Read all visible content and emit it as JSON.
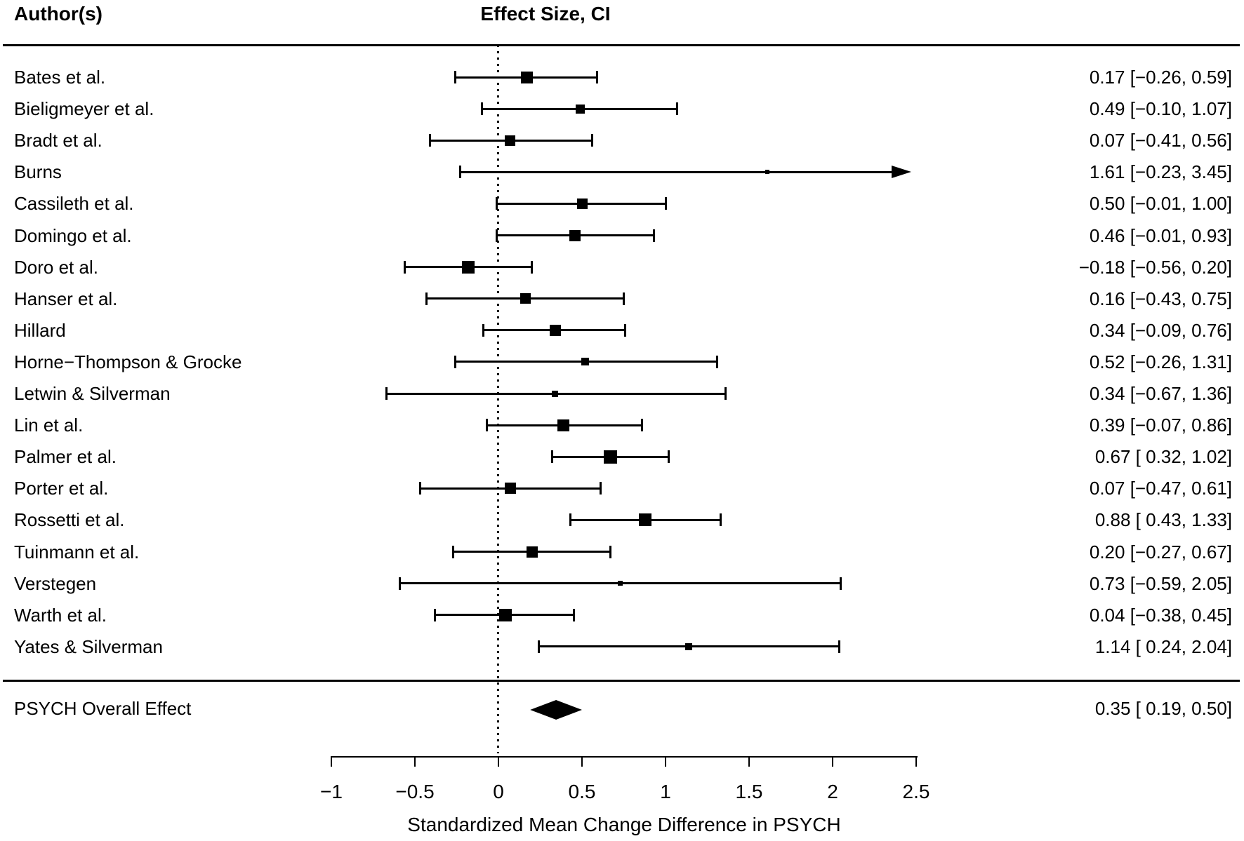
{
  "page": {
    "background": "#ffffff",
    "foreground": "#000000"
  },
  "header": {
    "left": "Author(s)",
    "right": "Effect Size, CI"
  },
  "chart_data": {
    "type": "forest",
    "xlabel": "Standardized Mean Change Difference in PSYCH",
    "xlim": [
      -1,
      2.5
    ],
    "x_ticks": [
      -1,
      -0.5,
      0,
      0.5,
      1,
      1.5,
      2,
      2.5
    ],
    "x_tick_labels": [
      "−1",
      "−0.5",
      "0",
      "0.5",
      "1",
      "1.5",
      "2",
      "2.5"
    ],
    "zero_reference_line": 0,
    "studies": [
      {
        "author": "Bates et al.",
        "estimate": 0.17,
        "lower": -0.26,
        "upper": 0.59,
        "label": "0.17 [−0.26, 0.59]",
        "marker_size": 17
      },
      {
        "author": "Bieligmeyer et al.",
        "estimate": 0.49,
        "lower": -0.1,
        "upper": 1.07,
        "label": "0.49 [−0.10, 1.07]",
        "marker_size": 13
      },
      {
        "author": "Bradt et al.",
        "estimate": 0.07,
        "lower": -0.41,
        "upper": 0.56,
        "label": "0.07 [−0.41, 0.56]",
        "marker_size": 15
      },
      {
        "author": "Burns",
        "estimate": 1.61,
        "lower": -0.23,
        "upper": 3.45,
        "label": "1.61 [−0.23, 3.45]",
        "marker_size": 6
      },
      {
        "author": "Cassileth et al.",
        "estimate": 0.5,
        "lower": -0.01,
        "upper": 1.0,
        "label": "0.50 [−0.01, 1.00]",
        "marker_size": 15
      },
      {
        "author": "Domingo et al.",
        "estimate": 0.46,
        "lower": -0.01,
        "upper": 0.93,
        "label": "0.46 [−0.01, 0.93]",
        "marker_size": 16
      },
      {
        "author": "Doro et al.",
        "estimate": -0.18,
        "lower": -0.56,
        "upper": 0.2,
        "label": "−0.18 [−0.56, 0.20]",
        "marker_size": 18
      },
      {
        "author": "Hanser et al.",
        "estimate": 0.16,
        "lower": -0.43,
        "upper": 0.75,
        "label": "0.16 [−0.43, 0.75]",
        "marker_size": 15
      },
      {
        "author": "Hillard",
        "estimate": 0.34,
        "lower": -0.09,
        "upper": 0.76,
        "label": "0.34 [−0.09, 0.76]",
        "marker_size": 16
      },
      {
        "author": "Horne−Thompson & Grocke",
        "estimate": 0.52,
        "lower": -0.26,
        "upper": 1.31,
        "label": "0.52 [−0.26, 1.31]",
        "marker_size": 11
      },
      {
        "author": "Letwin & Silverman",
        "estimate": 0.34,
        "lower": -0.67,
        "upper": 1.36,
        "label": "0.34 [−0.67, 1.36]",
        "marker_size": 9
      },
      {
        "author": "Lin et al.",
        "estimate": 0.39,
        "lower": -0.07,
        "upper": 0.86,
        "label": "0.39 [−0.07, 0.86]",
        "marker_size": 17
      },
      {
        "author": "Palmer et al.",
        "estimate": 0.67,
        "lower": 0.32,
        "upper": 1.02,
        "label": "0.67 [ 0.32, 1.02]",
        "marker_size": 19
      },
      {
        "author": "Porter et al.",
        "estimate": 0.07,
        "lower": -0.47,
        "upper": 0.61,
        "label": "0.07 [−0.47, 0.61]",
        "marker_size": 16
      },
      {
        "author": "Rossetti et al.",
        "estimate": 0.88,
        "lower": 0.43,
        "upper": 1.33,
        "label": "0.88 [ 0.43, 1.33]",
        "marker_size": 18
      },
      {
        "author": "Tuinmann et al.",
        "estimate": 0.2,
        "lower": -0.27,
        "upper": 0.67,
        "label": "0.20 [−0.27, 0.67]",
        "marker_size": 16
      },
      {
        "author": "Verstegen",
        "estimate": 0.73,
        "lower": -0.59,
        "upper": 2.05,
        "label": "0.73 [−0.59, 2.05]",
        "marker_size": 7
      },
      {
        "author": "Warth et al.",
        "estimate": 0.04,
        "lower": -0.38,
        "upper": 0.45,
        "label": "0.04 [−0.38, 0.45]",
        "marker_size": 18
      },
      {
        "author": "Yates & Silverman",
        "estimate": 1.14,
        "lower": 0.24,
        "upper": 2.04,
        "label": "1.14 [ 0.24, 2.04]",
        "marker_size": 10
      }
    ],
    "overall": {
      "author": "PSYCH Overall Effect",
      "estimate": 0.35,
      "lower": 0.19,
      "upper": 0.5,
      "label": "0.35 [ 0.19, 0.50]"
    }
  }
}
